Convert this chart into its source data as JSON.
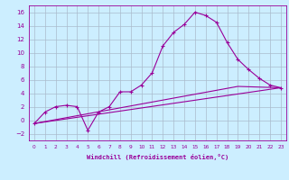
{
  "xlabel": "Windchill (Refroidissement éolien,°C)",
  "bg_color": "#cceeff",
  "grid_color": "#aabbcc",
  "line_color": "#990099",
  "xlim": [
    -0.5,
    23.5
  ],
  "ylim": [
    -3,
    17
  ],
  "xticks": [
    0,
    1,
    2,
    3,
    4,
    5,
    6,
    7,
    8,
    9,
    10,
    11,
    12,
    13,
    14,
    15,
    16,
    17,
    18,
    19,
    20,
    21,
    22,
    23
  ],
  "yticks": [
    -2,
    0,
    2,
    4,
    6,
    8,
    10,
    12,
    14,
    16
  ],
  "series1_x": [
    0,
    1,
    2,
    3,
    4,
    5,
    6,
    7,
    8,
    9,
    10,
    11,
    12,
    13,
    14,
    15,
    16,
    17,
    18,
    19,
    20,
    21,
    22,
    23
  ],
  "series1_y": [
    -0.5,
    1.2,
    2.0,
    2.2,
    2.0,
    -1.5,
    1.2,
    2.0,
    4.2,
    4.2,
    5.2,
    7.0,
    11.0,
    13.0,
    14.2,
    16.0,
    15.5,
    14.5,
    11.5,
    9.0,
    7.5,
    6.2,
    5.2,
    4.8
  ],
  "series2_x": [
    0,
    23
  ],
  "series2_y": [
    -0.5,
    4.8
  ],
  "series3_x": [
    0,
    19,
    23
  ],
  "series3_y": [
    -0.5,
    5.0,
    4.8
  ],
  "xlabel_fontsize": 5.0,
  "tick_fontsize_x": 4.2,
  "tick_fontsize_y": 5.0
}
